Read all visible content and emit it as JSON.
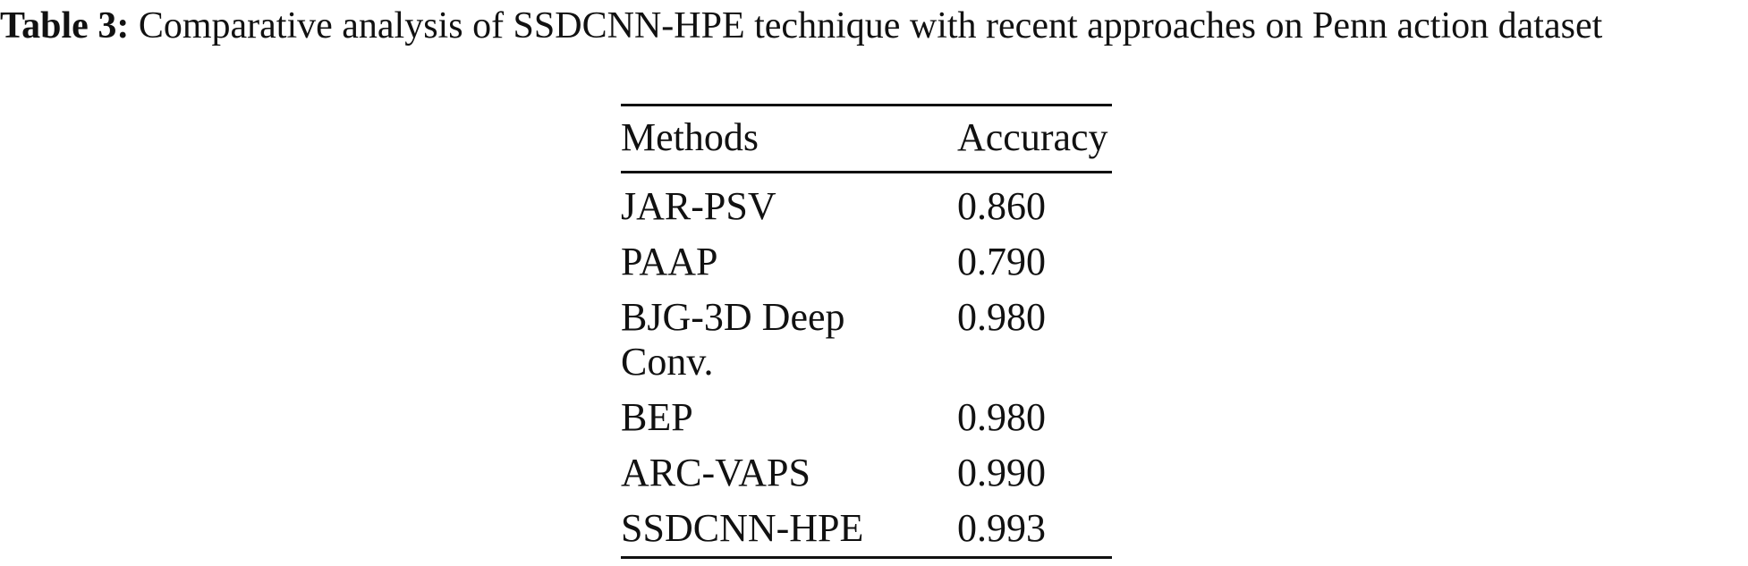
{
  "caption": {
    "label": "Table 3:",
    "text": "Comparative analysis of SSDCNN-HPE technique with recent approaches on Penn action dataset"
  },
  "table": {
    "header": [
      "Methods",
      "Accuracy"
    ],
    "rows": [
      [
        "JAR-PSV",
        "0.860"
      ],
      [
        "PAAP",
        "0.790"
      ],
      [
        "BJG-3D Deep Conv.",
        "0.980"
      ],
      [
        "BEP",
        "0.980"
      ],
      [
        "ARC-VAPS",
        "0.990"
      ],
      [
        "SSDCNN-HPE",
        "0.993"
      ]
    ]
  }
}
